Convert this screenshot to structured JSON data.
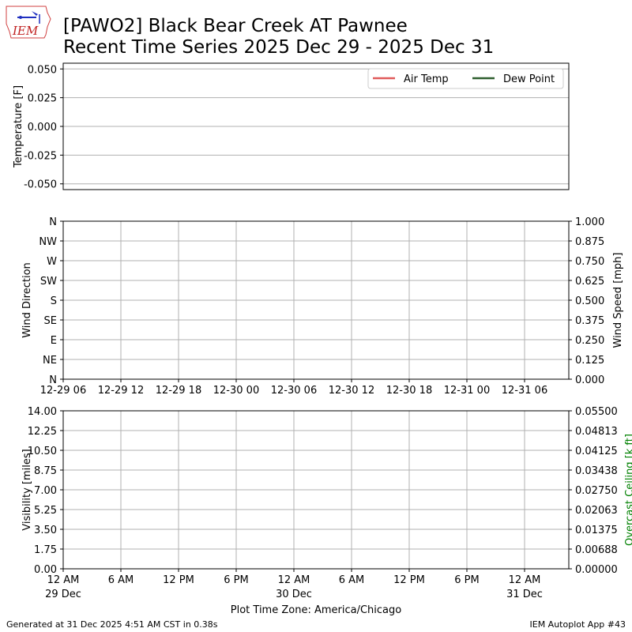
{
  "title_line1": "[PAWO2] Black Bear Creek  AT Pawnee",
  "title_line2": "Recent Time Series 2025 Dec 29 - 2025 Dec 31",
  "logo_text": "IEM",
  "footer_left": "Generated at 31 Dec 2025 4:51 AM CST in 0.38s",
  "footer_right": "IEM Autoplot App #43",
  "chart_data": [
    {
      "type": "line",
      "ylabel": "Temperature [F]",
      "ylim": [
        -0.055,
        0.055
      ],
      "yticks": [
        "0.050",
        "0.025",
        "0.000",
        "-0.025",
        "-0.050"
      ],
      "ytick_values": [
        0.05,
        0.025,
        0,
        -0.025,
        -0.05
      ],
      "grid": true,
      "legend_placement": "top-right",
      "series": [
        {
          "name": "Air Temp",
          "color": "#e05a5a",
          "values": []
        },
        {
          "name": "Dew Point",
          "color": "#2e5e2e",
          "values": []
        }
      ]
    },
    {
      "type": "scatter",
      "ylabel": "Wind Direction",
      "yticks": [
        "N",
        "NE",
        "E",
        "SE",
        "S",
        "SW",
        "W",
        "NW",
        "N"
      ],
      "ylim": [
        0,
        360
      ],
      "y2label": "Wind Speed [mph]",
      "y2ticks": [
        "0.000",
        "0.125",
        "0.250",
        "0.375",
        "0.500",
        "0.625",
        "0.750",
        "0.875",
        "1.000"
      ],
      "y2lim": [
        0,
        1
      ],
      "xticks": [
        "12-29 06",
        "12-29 12",
        "12-29 18",
        "12-30 00",
        "12-30 06",
        "12-30 12",
        "12-30 18",
        "12-31 00",
        "12-31 06"
      ],
      "grid": true,
      "series": []
    },
    {
      "type": "line",
      "ylabel": "Visibility [miles]",
      "ylim": [
        0,
        14
      ],
      "yticks": [
        "0.00",
        "1.75",
        "3.50",
        "5.25",
        "7.00",
        "8.75",
        "10.50",
        "12.25",
        "14.00"
      ],
      "y2label": "Overcast Ceiling [k ft]",
      "y2label_color": "#008000",
      "y2lim": [
        0,
        0.055
      ],
      "y2ticks": [
        "0.00000",
        "0.00688",
        "0.01375",
        "0.02063",
        "0.02750",
        "0.03438",
        "0.04125",
        "0.04813",
        "0.05500"
      ],
      "xticks": [
        [
          "12 AM",
          "29 Dec"
        ],
        [
          "6 AM",
          ""
        ],
        [
          "12 PM",
          ""
        ],
        [
          "6 PM",
          ""
        ],
        [
          "12 AM",
          "30 Dec"
        ],
        [
          "6 AM",
          ""
        ],
        [
          "12 PM",
          ""
        ],
        [
          "6 PM",
          ""
        ],
        [
          "12 AM",
          "31 Dec"
        ]
      ],
      "xlabel": "Plot Time Zone: America/Chicago",
      "grid": true,
      "series": []
    }
  ]
}
